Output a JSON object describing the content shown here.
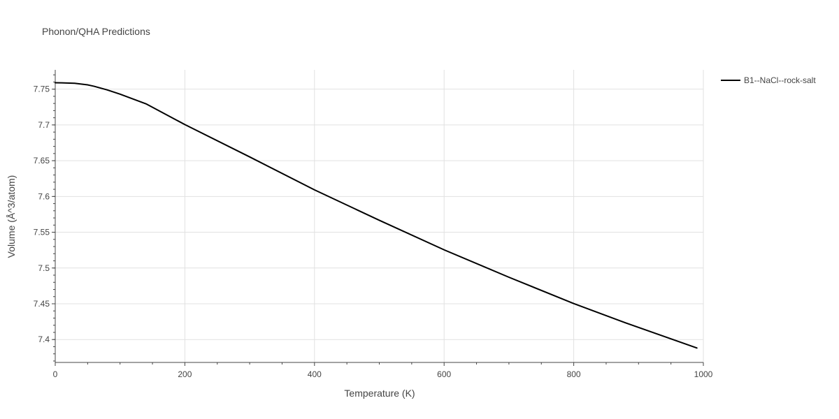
{
  "chart_data": {
    "type": "line",
    "title": "Phonon/QHA Predictions",
    "xlabel": "Temperature (K)",
    "ylabel": "Volume (Å^3/atom)",
    "xlim": [
      0,
      1000
    ],
    "ylim": [
      7.368,
      7.777
    ],
    "xticks": [
      0,
      200,
      400,
      600,
      800,
      1000
    ],
    "xtick_labels": [
      "0",
      "200",
      "400",
      "600",
      "800",
      "1000"
    ],
    "yticks": [
      7.4,
      7.45,
      7.5,
      7.55,
      7.6,
      7.65,
      7.7,
      7.75
    ],
    "ytick_labels": [
      "7.4",
      "7.45",
      "7.5",
      "7.55",
      "7.6",
      "7.65",
      "7.7",
      "7.75"
    ],
    "grid": true,
    "legend_position": "top-right",
    "series": [
      {
        "name": "B1--NaCl--rock-salt",
        "color": "#000000",
        "x": [
          0,
          10,
          30,
          50,
          60,
          80,
          100,
          140,
          200,
          300,
          400,
          500,
          600,
          700,
          800,
          880,
          990
        ],
        "y": [
          7.759,
          7.7588,
          7.7582,
          7.756,
          7.754,
          7.749,
          7.743,
          7.7295,
          7.7005,
          7.6553,
          7.6092,
          7.5667,
          7.5254,
          7.4871,
          7.4503,
          7.4233,
          7.3882
        ]
      }
    ]
  }
}
